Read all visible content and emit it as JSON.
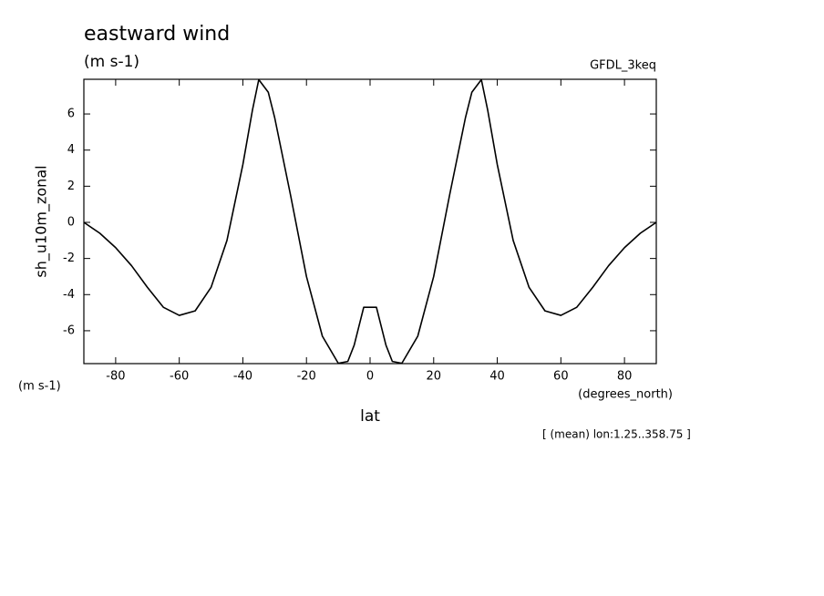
{
  "chart_data": {
    "type": "line",
    "title": "eastward wind",
    "subtitle": "(m s-1)",
    "source": "GFDL_3keq",
    "ylabel": "sh_u10m_zonal",
    "y_unit": "(m s-1)",
    "xlabel": "lat",
    "x_unit": "(degrees_north)",
    "note": "[ (mean) lon:1.25..358.75 ]",
    "x": [
      -90,
      -85,
      -80,
      -75,
      -70,
      -65,
      -60,
      -55,
      -50,
      -45,
      -40,
      -37,
      -35,
      -32,
      -30,
      -25,
      -20,
      -15,
      -10,
      -7,
      -5,
      -2,
      0,
      2,
      5,
      7,
      10,
      15,
      20,
      25,
      30,
      32,
      35,
      37,
      40,
      45,
      50,
      55,
      60,
      65,
      70,
      75,
      80,
      85,
      90
    ],
    "series": [
      {
        "name": "sh_u10m_zonal",
        "color": "#000000",
        "values": [
          0,
          -0.6,
          -1.4,
          -2.4,
          -3.6,
          -4.7,
          -5.15,
          -4.9,
          -3.6,
          -1.0,
          3.2,
          6.2,
          7.9,
          7.2,
          5.8,
          1.5,
          -3.0,
          -6.3,
          -7.8,
          -7.7,
          -6.8,
          -4.7,
          -4.7,
          -4.7,
          -6.8,
          -7.7,
          -7.8,
          -6.3,
          -3.0,
          1.5,
          5.8,
          7.2,
          7.9,
          6.2,
          3.2,
          -1.0,
          -3.6,
          -4.9,
          -5.15,
          -4.7,
          -3.6,
          -2.4,
          -1.4,
          -0.6,
          0
        ]
      }
    ],
    "xlim": [
      -90,
      90
    ],
    "xticks": [
      -80,
      -60,
      -40,
      -20,
      0,
      20,
      40,
      60,
      80
    ],
    "ylim": [
      -7.82,
      7.92
    ],
    "yticks": [
      -6,
      -4,
      -2,
      0,
      2,
      4,
      6
    ]
  }
}
